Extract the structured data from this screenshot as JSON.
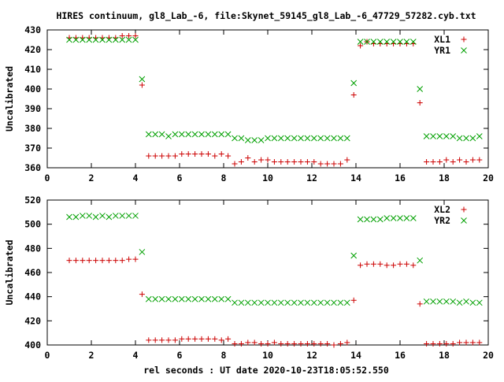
{
  "title": "HIRES continuum, gl8_Lab_-6, file:Skynet_59145_gl8_Lab_-6_47729_57282.cyb.txt",
  "xlabel": "rel seconds : UT date 2020-10-23T18:05:52.550",
  "colors": {
    "red": "#cc0000",
    "green": "#00a000",
    "axis": "#000000"
  },
  "chart_data": [
    {
      "type": "scatter",
      "ylabel": "Uncalibrated",
      "xlim": [
        0,
        20
      ],
      "ylim": [
        360,
        430
      ],
      "xticks": [
        0,
        2,
        4,
        6,
        8,
        10,
        12,
        14,
        16,
        18,
        20
      ],
      "yticks": [
        360,
        370,
        380,
        390,
        400,
        410,
        420,
        430
      ],
      "legend_position": "top-right",
      "series": [
        {
          "name": "XL1",
          "marker": "plus",
          "color": "#cc0000",
          "x": [
            1.0,
            1.3,
            1.6,
            1.9,
            2.2,
            2.5,
            2.8,
            3.1,
            3.4,
            3.7,
            4.0,
            4.3,
            4.6,
            4.9,
            5.2,
            5.5,
            5.8,
            6.1,
            6.4,
            6.7,
            7.0,
            7.3,
            7.6,
            7.9,
            8.2,
            8.5,
            8.8,
            9.1,
            9.4,
            9.7,
            10.0,
            10.3,
            10.6,
            10.9,
            11.2,
            11.5,
            11.8,
            12.1,
            12.4,
            12.7,
            13.0,
            13.3,
            13.6,
            13.9,
            14.2,
            14.5,
            14.8,
            15.1,
            15.4,
            15.7,
            16.0,
            16.3,
            16.6,
            16.9,
            17.2,
            17.5,
            17.8,
            18.1,
            18.4,
            18.7,
            19.0,
            19.3,
            19.6
          ],
          "y": [
            426,
            426,
            426,
            426,
            426,
            426,
            426,
            426,
            427,
            427,
            427,
            402,
            366,
            366,
            366,
            366,
            366,
            367,
            367,
            367,
            367,
            367,
            366,
            367,
            366,
            362,
            363,
            365,
            363,
            364,
            364,
            363,
            363,
            363,
            363,
            363,
            363,
            363,
            362,
            362,
            362,
            362,
            364,
            397,
            422,
            424,
            423,
            423,
            423,
            423,
            423,
            423,
            423,
            393,
            363,
            363,
            363,
            364,
            363,
            364,
            363,
            364,
            364
          ]
        },
        {
          "name": "YR1",
          "marker": "cross",
          "color": "#00a000",
          "x": [
            1.0,
            1.3,
            1.6,
            1.9,
            2.2,
            2.5,
            2.8,
            3.1,
            3.4,
            3.7,
            4.0,
            4.3,
            4.6,
            4.9,
            5.2,
            5.5,
            5.8,
            6.1,
            6.4,
            6.7,
            7.0,
            7.3,
            7.6,
            7.9,
            8.2,
            8.5,
            8.8,
            9.1,
            9.4,
            9.7,
            10.0,
            10.3,
            10.6,
            10.9,
            11.2,
            11.5,
            11.8,
            12.1,
            12.4,
            12.7,
            13.0,
            13.3,
            13.6,
            13.9,
            14.2,
            14.5,
            14.8,
            15.1,
            15.4,
            15.7,
            16.0,
            16.3,
            16.6,
            16.9,
            17.2,
            17.5,
            17.8,
            18.1,
            18.4,
            18.7,
            19.0,
            19.3,
            19.6
          ],
          "y": [
            425,
            425,
            425,
            425,
            425,
            425,
            425,
            425,
            425,
            425,
            425,
            405,
            377,
            377,
            377,
            376,
            377,
            377,
            377,
            377,
            377,
            377,
            377,
            377,
            377,
            375,
            375,
            374,
            374,
            374,
            375,
            375,
            375,
            375,
            375,
            375,
            375,
            375,
            375,
            375,
            375,
            375,
            375,
            403,
            424,
            424,
            424,
            424,
            424,
            424,
            424,
            424,
            424,
            400,
            376,
            376,
            376,
            376,
            376,
            375,
            375,
            375,
            376
          ]
        }
      ]
    },
    {
      "type": "scatter",
      "ylabel": "Uncalibrated",
      "xlim": [
        0,
        20
      ],
      "ylim": [
        400,
        520
      ],
      "xticks": [
        0,
        2,
        4,
        6,
        8,
        10,
        12,
        14,
        16,
        18,
        20
      ],
      "yticks": [
        400,
        420,
        440,
        460,
        480,
        500,
        520
      ],
      "legend_position": "top-right",
      "series": [
        {
          "name": "XL2",
          "marker": "plus",
          "color": "#cc0000",
          "x": [
            1.0,
            1.3,
            1.6,
            1.9,
            2.2,
            2.5,
            2.8,
            3.1,
            3.4,
            3.7,
            4.0,
            4.3,
            4.6,
            4.9,
            5.2,
            5.5,
            5.8,
            6.1,
            6.4,
            6.7,
            7.0,
            7.3,
            7.6,
            7.9,
            8.2,
            8.5,
            8.8,
            9.1,
            9.4,
            9.7,
            10.0,
            10.3,
            10.6,
            10.9,
            11.2,
            11.5,
            11.8,
            12.1,
            12.4,
            12.7,
            13.0,
            13.3,
            13.6,
            13.9,
            14.2,
            14.5,
            14.8,
            15.1,
            15.4,
            15.7,
            16.0,
            16.3,
            16.6,
            16.9,
            17.2,
            17.5,
            17.8,
            18.1,
            18.4,
            18.7,
            19.0,
            19.3,
            19.6
          ],
          "y": [
            470,
            470,
            470,
            470,
            470,
            470,
            470,
            470,
            470,
            471,
            471,
            442,
            404,
            404,
            404,
            404,
            404,
            405,
            405,
            405,
            405,
            405,
            405,
            404,
            405,
            401,
            401,
            402,
            402,
            401,
            401,
            402,
            401,
            401,
            401,
            401,
            401,
            401,
            401,
            401,
            400,
            401,
            402,
            437,
            466,
            467,
            467,
            467,
            466,
            466,
            467,
            467,
            466,
            434,
            401,
            401,
            401,
            401,
            401,
            402,
            402,
            402,
            402
          ]
        },
        {
          "name": "YR2",
          "marker": "cross",
          "color": "#00a000",
          "x": [
            1.0,
            1.3,
            1.6,
            1.9,
            2.2,
            2.5,
            2.8,
            3.1,
            3.4,
            3.7,
            4.0,
            4.3,
            4.6,
            4.9,
            5.2,
            5.5,
            5.8,
            6.1,
            6.4,
            6.7,
            7.0,
            7.3,
            7.6,
            7.9,
            8.2,
            8.5,
            8.8,
            9.1,
            9.4,
            9.7,
            10.0,
            10.3,
            10.6,
            10.9,
            11.2,
            11.5,
            11.8,
            12.1,
            12.4,
            12.7,
            13.0,
            13.3,
            13.6,
            13.9,
            14.2,
            14.5,
            14.8,
            15.1,
            15.4,
            15.7,
            16.0,
            16.3,
            16.6,
            16.9,
            17.2,
            17.5,
            17.8,
            18.1,
            18.4,
            18.7,
            19.0,
            19.3,
            19.6
          ],
          "y": [
            506,
            506,
            507,
            507,
            506,
            507,
            506,
            507,
            507,
            507,
            507,
            477,
            438,
            438,
            438,
            438,
            438,
            438,
            438,
            438,
            438,
            438,
            438,
            438,
            438,
            435,
            435,
            435,
            435,
            435,
            435,
            435,
            435,
            435,
            435,
            435,
            435,
            435,
            435,
            435,
            435,
            435,
            435,
            474,
            504,
            504,
            504,
            504,
            505,
            505,
            505,
            505,
            505,
            470,
            436,
            436,
            436,
            436,
            436,
            435,
            436,
            435,
            435
          ]
        }
      ]
    }
  ]
}
